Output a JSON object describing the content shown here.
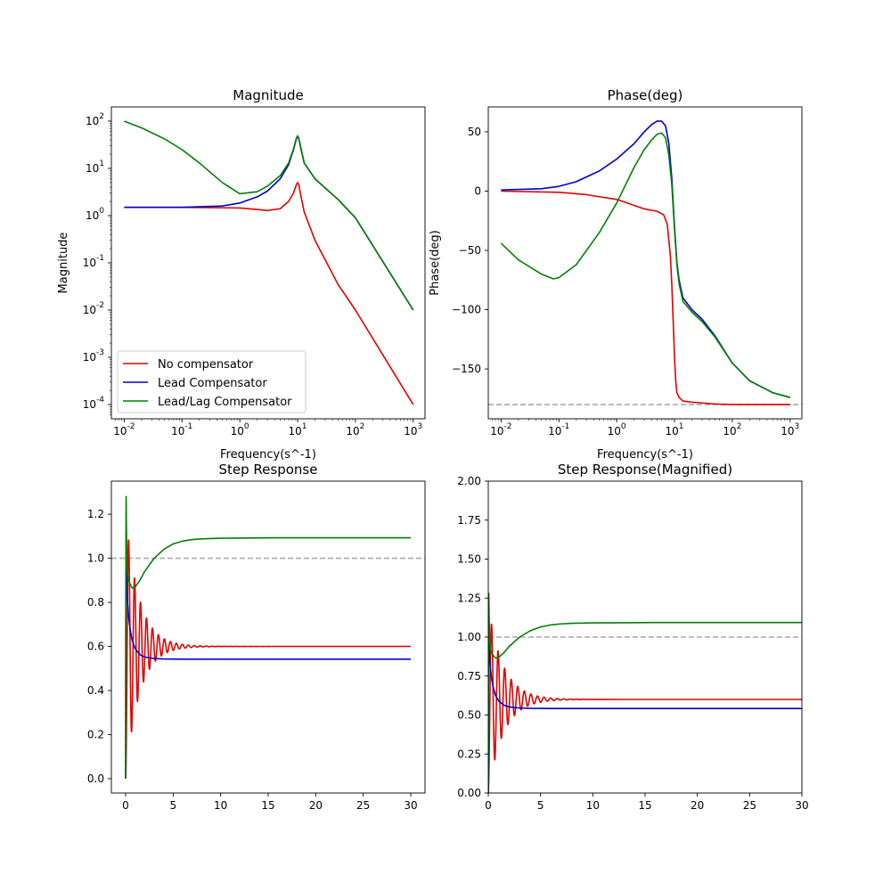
{
  "colors": {
    "no_compensator": "#e00000",
    "lead": "#0000d0",
    "leadlag": "#008000",
    "reference": "#aaaaaa"
  },
  "chart_data": [
    {
      "id": "magnitude",
      "type": "line",
      "title": "Magnitude",
      "xlabel": "Frequency(s^-1)",
      "ylabel": "Magnitude",
      "xscale": "log",
      "yscale": "log",
      "xlim": [
        0.006,
        1600
      ],
      "ylim": [
        5e-05,
        200
      ],
      "xticks": [
        0.01,
        0.1,
        1,
        10,
        100,
        1000
      ],
      "xtick_labels": [
        "10^-2",
        "10^-1",
        "10^0",
        "10^1",
        "10^2",
        "10^3"
      ],
      "yticks": [
        0.0001,
        0.001,
        0.01,
        0.1,
        1,
        10,
        100
      ],
      "ytick_labels": [
        "10^-4",
        "10^-3",
        "10^-2",
        "10^-1",
        "10^0",
        "10^1",
        "10^2"
      ],
      "grid": false,
      "legend": {
        "placement": "lower-left",
        "entries": [
          {
            "name": "No compensator",
            "color": "#e00000"
          },
          {
            "name": "Lead Compensator",
            "color": "#0000d0"
          },
          {
            "name": "Lead/Lag Compensator",
            "color": "#008000"
          }
        ]
      },
      "series": [
        {
          "name": "No compensator",
          "color": "#e00000",
          "x": [
            0.01,
            0.1,
            1,
            2,
            3,
            5,
            7,
            8.5,
            9.5,
            10,
            10.5,
            11.5,
            13,
            20,
            50,
            100,
            1000
          ],
          "y": [
            1.5,
            1.5,
            1.45,
            1.35,
            1.28,
            1.4,
            2.0,
            3.0,
            4.5,
            5.0,
            4.5,
            2.5,
            1.2,
            0.3,
            0.035,
            0.01,
            0.0001
          ]
        },
        {
          "name": "Lead Compensator",
          "color": "#0000d0",
          "x": [
            0.01,
            0.1,
            0.5,
            1,
            2,
            3,
            5,
            7,
            8.5,
            9.5,
            10,
            10.5,
            11.5,
            13,
            20,
            50,
            100,
            1000
          ],
          "y": [
            1.5,
            1.5,
            1.6,
            1.85,
            2.5,
            3.3,
            6.0,
            12.0,
            25.0,
            42.0,
            48.0,
            42.0,
            25.0,
            13.0,
            6.0,
            2.2,
            0.9,
            0.01
          ]
        },
        {
          "name": "Lead/Lag Compensator",
          "color": "#008000",
          "x": [
            0.01,
            0.02,
            0.05,
            0.1,
            0.2,
            0.5,
            1,
            2,
            3,
            5,
            7,
            8.5,
            9.5,
            10,
            10.5,
            11.5,
            13,
            20,
            50,
            100,
            1000
          ],
          "y": [
            100.0,
            72.0,
            42.0,
            25.0,
            13.0,
            5.0,
            2.9,
            3.2,
            4.2,
            7.0,
            13.0,
            26.0,
            43.0,
            49.0,
            43.0,
            26.0,
            13.0,
            6.0,
            2.2,
            0.9,
            0.01
          ]
        }
      ]
    },
    {
      "id": "phase",
      "type": "line",
      "title": "Phase(deg)",
      "xlabel": "Frequency(s^-1)",
      "ylabel": "Phase(deg)",
      "xscale": "log",
      "yscale": "linear",
      "xlim": [
        0.006,
        1600
      ],
      "ylim": [
        -192,
        71
      ],
      "xticks": [
        0.01,
        0.1,
        1,
        10,
        100,
        1000
      ],
      "xtick_labels": [
        "10^-2",
        "10^-1",
        "10^0",
        "10^1",
        "10^2",
        "10^3"
      ],
      "yticks": [
        -150,
        -100,
        -50,
        0,
        50
      ],
      "ytick_labels": [
        "−150",
        "−100",
        "−50",
        "0",
        "50"
      ],
      "grid": false,
      "reference_line": {
        "y": -180,
        "style": "dashed"
      },
      "series": [
        {
          "name": "No compensator",
          "color": "#e00000",
          "x": [
            0.01,
            0.1,
            0.3,
            1,
            2,
            3,
            5,
            6.5,
            7.5,
            8.5,
            9,
            9.5,
            10,
            10.5,
            11,
            12,
            14,
            20,
            50,
            100,
            1000
          ],
          "y": [
            0,
            -1,
            -3,
            -7,
            -12,
            -15,
            -17,
            -20,
            -28,
            -55,
            -80,
            -110,
            -140,
            -160,
            -170,
            -174,
            -177,
            -178,
            -179.5,
            -180,
            -180
          ]
        },
        {
          "name": "Lead Compensator",
          "color": "#0000d0",
          "x": [
            0.01,
            0.05,
            0.1,
            0.2,
            0.5,
            1,
            2,
            3,
            4,
            5,
            6,
            7,
            8,
            9,
            10,
            11,
            12,
            14,
            20,
            30,
            50,
            100,
            200,
            500,
            1000
          ],
          "y": [
            1,
            2,
            4,
            8,
            17,
            27,
            40,
            50,
            56,
            59,
            59,
            55,
            40,
            10,
            -30,
            -60,
            -75,
            -90,
            -100,
            -108,
            -122,
            -145,
            -160,
            -170,
            -174
          ]
        },
        {
          "name": "Lead/Lag Compensator",
          "color": "#008000",
          "x": [
            0.01,
            0.02,
            0.05,
            0.08,
            0.1,
            0.2,
            0.5,
            1,
            2,
            3,
            4,
            5,
            6,
            7,
            8,
            9,
            10,
            11,
            12,
            14,
            20,
            30,
            50,
            100,
            200,
            500,
            1000
          ],
          "y": [
            -44,
            -58,
            -70,
            -74,
            -73,
            -62,
            -35,
            -10,
            20,
            35,
            43,
            48,
            49,
            45,
            30,
            5,
            -32,
            -62,
            -78,
            -93,
            -102,
            -110,
            -123,
            -145,
            -160,
            -170,
            -174
          ]
        }
      ]
    },
    {
      "id": "step",
      "type": "line",
      "title": "Step Response",
      "xlabel": "",
      "ylabel": "",
      "xscale": "linear",
      "yscale": "linear",
      "xlim": [
        -1.5,
        31.5
      ],
      "ylim": [
        -0.065,
        1.35
      ],
      "xticks": [
        0,
        5,
        10,
        15,
        20,
        25,
        30
      ],
      "xtick_labels": [
        "0",
        "5",
        "10",
        "15",
        "20",
        "25",
        "30"
      ],
      "yticks": [
        0,
        0.2,
        0.4,
        0.6,
        0.8,
        1.0,
        1.2
      ],
      "ytick_labels": [
        "0.0",
        "0.2",
        "0.4",
        "0.6",
        "0.8",
        "1.0",
        "1.2"
      ],
      "grid": false,
      "reference_line": {
        "y": 1.0,
        "style": "dashed"
      },
      "series": [
        {
          "name": "No compensator",
          "color": "#e00000",
          "model": {
            "t_end": 30,
            "steady": 0.6,
            "amplitude": 0.6,
            "decay": 0.7,
            "omega": 10.0
          }
        },
        {
          "name": "Lead Compensator",
          "color": "#0000d0",
          "x": [
            0,
            0.02,
            0.05,
            0.08,
            0.12,
            0.2,
            0.3,
            0.5,
            0.7,
            1.0,
            1.5,
            2.0,
            3.0,
            4.0,
            6.0,
            10.0,
            30.0
          ],
          "y": [
            0,
            0.7,
            1.05,
            0.95,
            0.88,
            0.8,
            0.74,
            0.67,
            0.625,
            0.59,
            0.563,
            0.552,
            0.545,
            0.543,
            0.542,
            0.542,
            0.542
          ]
        },
        {
          "name": "Lead/Lag Compensator",
          "color": "#008000",
          "x": [
            0,
            0.02,
            0.05,
            0.08,
            0.12,
            0.2,
            0.3,
            0.5,
            0.7,
            1.0,
            1.5,
            2.0,
            3.0,
            4.0,
            5.0,
            6.0,
            7.0,
            8.0,
            10.0,
            13.0,
            16.0,
            20.0,
            30.0
          ],
          "y": [
            0,
            0.9,
            1.28,
            1.15,
            1.0,
            0.93,
            0.9,
            0.88,
            0.865,
            0.87,
            0.9,
            0.94,
            1.0,
            1.04,
            1.065,
            1.078,
            1.085,
            1.088,
            1.091,
            1.092,
            1.093,
            1.093,
            1.093
          ]
        }
      ]
    },
    {
      "id": "step_magnified",
      "type": "line",
      "title": "Step Response(Magnified)",
      "xlabel": "",
      "ylabel": "",
      "xscale": "linear",
      "yscale": "linear",
      "xlim": [
        0,
        30
      ],
      "ylim": [
        0,
        2
      ],
      "xticks": [
        0,
        5,
        10,
        15,
        20,
        25,
        30
      ],
      "xtick_labels": [
        "0",
        "5",
        "10",
        "15",
        "20",
        "25",
        "30"
      ],
      "yticks": [
        0,
        0.25,
        0.5,
        0.75,
        1.0,
        1.25,
        1.5,
        1.75,
        2.0
      ],
      "ytick_labels": [
        "0.00",
        "0.25",
        "0.50",
        "0.75",
        "1.00",
        "1.25",
        "1.50",
        "1.75",
        "2.00"
      ],
      "grid": false,
      "reference_line": {
        "y": 1.0,
        "style": "dashed"
      },
      "series": [
        {
          "name": "No compensator",
          "color": "#e00000",
          "model": {
            "t_end": 30,
            "steady": 0.6,
            "amplitude": 0.6,
            "decay": 0.7,
            "omega": 10.0
          }
        },
        {
          "name": "Lead Compensator",
          "color": "#0000d0",
          "x": [
            0,
            0.02,
            0.05,
            0.08,
            0.12,
            0.2,
            0.3,
            0.5,
            0.7,
            1.0,
            1.5,
            2.0,
            3.0,
            4.0,
            6.0,
            10.0,
            30.0
          ],
          "y": [
            0,
            0.7,
            1.05,
            0.95,
            0.88,
            0.8,
            0.74,
            0.67,
            0.625,
            0.59,
            0.563,
            0.552,
            0.545,
            0.543,
            0.542,
            0.542,
            0.542
          ]
        },
        {
          "name": "Lead/Lag Compensator",
          "color": "#008000",
          "x": [
            0,
            0.02,
            0.05,
            0.08,
            0.12,
            0.2,
            0.3,
            0.5,
            0.7,
            1.0,
            1.5,
            2.0,
            3.0,
            4.0,
            5.0,
            6.0,
            7.0,
            8.0,
            10.0,
            13.0,
            16.0,
            20.0,
            30.0
          ],
          "y": [
            0,
            0.9,
            1.28,
            1.15,
            1.0,
            0.93,
            0.9,
            0.88,
            0.865,
            0.87,
            0.9,
            0.94,
            1.0,
            1.04,
            1.065,
            1.078,
            1.085,
            1.088,
            1.091,
            1.092,
            1.093,
            1.093,
            1.093
          ]
        }
      ]
    }
  ]
}
